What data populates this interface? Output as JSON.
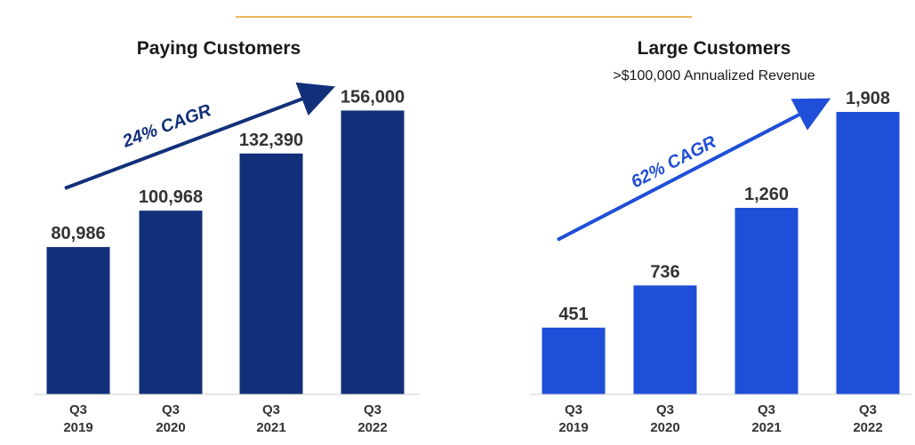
{
  "colors": {
    "accent_line": "#F2B55E",
    "paying_bar": "#12307A",
    "large_bar": "#1F4FD8",
    "axis": "#cfcfcf"
  },
  "chart_data": [
    {
      "type": "bar",
      "title": "Paying Customers",
      "subtitle": "",
      "categories": [
        "Q3\n2019",
        "Q3\n2020",
        "Q3\n2021",
        "Q3\n2022"
      ],
      "values": [
        80986,
        100968,
        132390,
        156000
      ],
      "value_labels": [
        "80,986",
        "100,968",
        "132,390",
        "156,000"
      ],
      "annotation": "24% CAGR",
      "ylim": [
        0,
        165000
      ],
      "grid": false,
      "legend": "none"
    },
    {
      "type": "bar",
      "title": "Large Customers",
      "subtitle": ">$100,000 Annualized Revenue",
      "categories": [
        "Q3\n2019",
        "Q3\n2020",
        "Q3\n2021",
        "Q3\n2022"
      ],
      "values": [
        451,
        736,
        1260,
        1908
      ],
      "value_labels": [
        "451",
        "736",
        "1,260",
        "1,908"
      ],
      "annotation": "62% CAGR",
      "ylim": [
        0,
        1980
      ],
      "grid": false,
      "legend": "none"
    }
  ]
}
